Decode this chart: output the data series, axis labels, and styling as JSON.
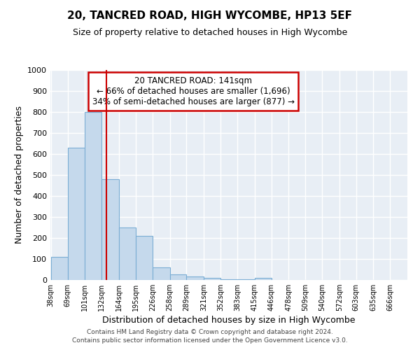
{
  "title": "20, TANCRED ROAD, HIGH WYCOMBE, HP13 5EF",
  "subtitle": "Size of property relative to detached houses in High Wycombe",
  "xlabel": "Distribution of detached houses by size in High Wycombe",
  "ylabel": "Number of detached properties",
  "bin_labels": [
    "38sqm",
    "69sqm",
    "101sqm",
    "132sqm",
    "164sqm",
    "195sqm",
    "226sqm",
    "258sqm",
    "289sqm",
    "321sqm",
    "352sqm",
    "383sqm",
    "415sqm",
    "446sqm",
    "478sqm",
    "509sqm",
    "540sqm",
    "572sqm",
    "603sqm",
    "635sqm",
    "666sqm"
  ],
  "bin_edges": [
    38,
    69,
    101,
    132,
    164,
    195,
    226,
    258,
    289,
    321,
    352,
    383,
    415,
    446,
    478,
    509,
    540,
    572,
    603,
    635,
    666
  ],
  "bar_heights": [
    110,
    630,
    800,
    480,
    250,
    210,
    60,
    28,
    17,
    10,
    5,
    5,
    10,
    0,
    0,
    0,
    0,
    0,
    0,
    0
  ],
  "bar_color": "#c5d9ec",
  "bar_edge_color": "#7aadd4",
  "red_line_x": 141,
  "annotation_title": "20 TANCRED ROAD: 141sqm",
  "annotation_line1": "← 66% of detached houses are smaller (1,696)",
  "annotation_line2": "34% of semi-detached houses are larger (877) →",
  "annotation_box_color": "#ffffff",
  "annotation_border_color": "#cc0000",
  "red_line_color": "#cc0000",
  "bg_color": "#e8eef5",
  "grid_color": "#ffffff",
  "ylim": [
    0,
    1000
  ],
  "yticks": [
    0,
    100,
    200,
    300,
    400,
    500,
    600,
    700,
    800,
    900,
    1000
  ],
  "footer_line1": "Contains HM Land Registry data © Crown copyright and database right 2024.",
  "footer_line2": "Contains public sector information licensed under the Open Government Licence v3.0."
}
